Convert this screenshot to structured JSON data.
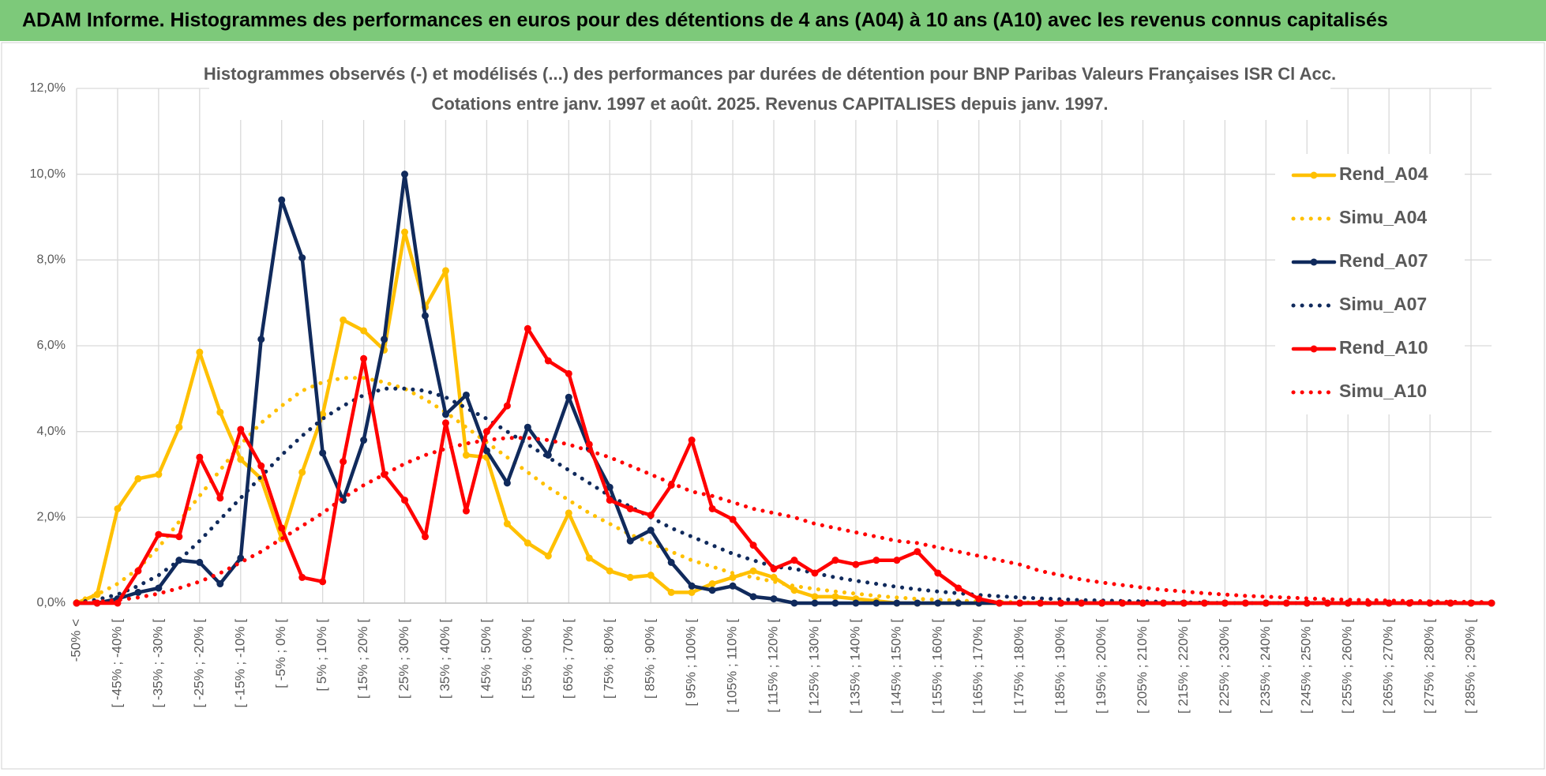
{
  "banner": {
    "title": "ADAM Informe. Histogrammes des performances en euros pour des détentions de 4 ans (A04) à 10 ans (A10) avec les revenus connus capitalisés"
  },
  "chart_data": {
    "type": "line",
    "title": "Histogrammes observés (-) et modélisés (...) des performances par durées de détention pour BNP Paribas Valeurs Françaises ISR Cl Acc.",
    "subtitle": "Cotations entre janv. 1997 et août. 2025. Revenus CAPITALISES depuis janv. 1997.",
    "categories": [
      "-50% <",
      null,
      "[ -45% ; -40% [",
      null,
      "[ -35% ; -30% [",
      null,
      "[ -25% ; -20% [",
      null,
      "[ -15% ; -10% [",
      null,
      "[ -5% ; 0% [",
      null,
      "[ 5% ; 10% [",
      null,
      "[ 15% ; 20% [",
      null,
      "[ 25% ; 30% [",
      null,
      "[ 35% ; 40% [",
      null,
      "[ 45% ; 50% [",
      null,
      "[ 55% ; 60% [",
      null,
      "[ 65% ; 70% [",
      null,
      "[ 75% ; 80% [",
      null,
      "[ 85% ; 90% [",
      null,
      "[ 95% ; 100% [",
      null,
      "[ 105% ; 110% [",
      null,
      "[ 115% ; 120% [",
      null,
      "[ 125% ; 130% [",
      null,
      "[ 135% ; 140% [",
      null,
      "[ 145% ; 150% [",
      null,
      "[ 155% ; 160% [",
      null,
      "[ 165% ; 170% [",
      null,
      "[ 175% ; 180% [",
      null,
      "[ 185% ; 190% [",
      null,
      "[ 195% ; 200% [",
      null,
      "[ 205% ; 210% [",
      null,
      "[ 215% ; 220% [",
      null,
      "[ 225% ; 230% [",
      null,
      "[ 235% ; 240% [",
      null,
      "[ 245% ; 250% [",
      null,
      "[ 255% ; 260% [",
      null,
      "[ 265% ; 270% [",
      null,
      "[ 275% ; 280% [",
      null,
      "[ 285% ; 290% [",
      null
    ],
    "series": [
      {
        "name": "Rend_A04",
        "color": "#ffc000",
        "line_style": "solid",
        "values": [
          0,
          0.2,
          2.2,
          2.9,
          3.0,
          4.1,
          5.85,
          4.45,
          3.35,
          2.9,
          1.5,
          3.05,
          4.4,
          6.6,
          6.35,
          5.9,
          8.65,
          6.9,
          7.75,
          3.45,
          3.4,
          1.85,
          1.4,
          1.1,
          2.1,
          1.05,
          0.75,
          0.6,
          0.65,
          0.25,
          0.25,
          0.45,
          0.6,
          0.75,
          0.6,
          0.3,
          0.15,
          0.15,
          0.1,
          0.05,
          0,
          0,
          0,
          0,
          0,
          0,
          0,
          0,
          0,
          0,
          0,
          0,
          0,
          0,
          0,
          0,
          0,
          0,
          0,
          0,
          0,
          0,
          0,
          0,
          0,
          0,
          0,
          0,
          0,
          0
        ]
      },
      {
        "name": "Simu_A04",
        "color": "#ffc000",
        "line_style": "dotted",
        "values": [
          0.05,
          0.2,
          0.45,
          0.8,
          1.3,
          1.9,
          2.5,
          3.1,
          3.7,
          4.2,
          4.6,
          4.95,
          5.15,
          5.25,
          5.25,
          5.15,
          5.0,
          4.75,
          4.45,
          4.1,
          3.75,
          3.4,
          3.05,
          2.7,
          2.4,
          2.1,
          1.85,
          1.6,
          1.4,
          1.2,
          1.0,
          0.85,
          0.7,
          0.6,
          0.5,
          0.4,
          0.33,
          0.27,
          0.22,
          0.17,
          0.13,
          0.1,
          0.08,
          0.06,
          0.04,
          0.03,
          0.02,
          0.01,
          0,
          0,
          0,
          0,
          0,
          0,
          0,
          0,
          0,
          0,
          0,
          0,
          0,
          0,
          0,
          0,
          0,
          0,
          0,
          0,
          0,
          0
        ]
      },
      {
        "name": "Rend_A07",
        "color": "#102a5c",
        "line_style": "solid",
        "values": [
          0,
          0,
          0.1,
          0.25,
          0.35,
          1.0,
          0.95,
          0.45,
          1.05,
          6.15,
          9.4,
          8.05,
          3.5,
          2.4,
          3.8,
          6.15,
          10.0,
          6.7,
          4.4,
          4.85,
          3.55,
          2.8,
          4.1,
          3.45,
          4.8,
          3.6,
          2.7,
          1.45,
          1.7,
          0.95,
          0.4,
          0.3,
          0.4,
          0.15,
          0.1,
          0,
          0,
          0,
          0,
          0,
          0,
          0,
          0,
          0,
          0,
          0,
          0,
          0,
          0,
          0,
          0,
          0,
          0,
          0,
          0,
          0,
          0,
          0,
          0,
          0,
          0,
          0,
          0,
          0,
          0,
          0,
          0,
          0,
          0,
          0
        ]
      },
      {
        "name": "Simu_A07",
        "color": "#102a5c",
        "line_style": "dotted",
        "values": [
          0.02,
          0.08,
          0.2,
          0.4,
          0.65,
          1.0,
          1.45,
          1.95,
          2.45,
          2.95,
          3.45,
          3.9,
          4.3,
          4.6,
          4.85,
          5.0,
          5.0,
          4.95,
          4.8,
          4.55,
          4.3,
          4.0,
          3.7,
          3.4,
          3.1,
          2.8,
          2.5,
          2.25,
          2.0,
          1.75,
          1.55,
          1.35,
          1.15,
          1.0,
          0.85,
          0.8,
          0.7,
          0.6,
          0.52,
          0.45,
          0.38,
          0.32,
          0.27,
          0.23,
          0.19,
          0.16,
          0.13,
          0.11,
          0.09,
          0.07,
          0.06,
          0.05,
          0.04,
          0.03,
          0.02,
          0.01,
          0,
          0,
          0,
          0,
          0,
          0,
          0,
          0,
          0,
          0,
          0,
          0,
          0,
          0
        ]
      },
      {
        "name": "Rend_A10",
        "color": "#ff0000",
        "line_style": "solid",
        "values": [
          0,
          0,
          0,
          0.75,
          1.6,
          1.55,
          3.4,
          2.45,
          4.05,
          3.2,
          1.75,
          0.6,
          0.5,
          3.3,
          5.7,
          3.0,
          2.4,
          1.55,
          4.2,
          2.15,
          4.0,
          4.6,
          6.4,
          5.65,
          5.35,
          3.7,
          2.4,
          2.2,
          2.05,
          2.75,
          3.8,
          2.2,
          1.95,
          1.35,
          0.8,
          1.0,
          0.7,
          1.0,
          0.9,
          1.0,
          1.0,
          1.2,
          0.7,
          0.35,
          0.1,
          0,
          0,
          0,
          0,
          0,
          0,
          0,
          0,
          0,
          0,
          0,
          0,
          0,
          0,
          0,
          0,
          0,
          0,
          0,
          0,
          0,
          0,
          0,
          0,
          0
        ]
      },
      {
        "name": "Simu_A10",
        "color": "#ff0000",
        "line_style": "dotted",
        "values": [
          0.01,
          0.03,
          0.07,
          0.13,
          0.22,
          0.35,
          0.5,
          0.7,
          0.95,
          1.2,
          1.5,
          1.8,
          2.1,
          2.45,
          2.75,
          3.0,
          3.25,
          3.45,
          3.6,
          3.72,
          3.8,
          3.85,
          3.85,
          3.8,
          3.7,
          3.55,
          3.4,
          3.2,
          3.0,
          2.8,
          2.6,
          2.5,
          2.35,
          2.2,
          2.1,
          2.0,
          1.85,
          1.75,
          1.65,
          1.55,
          1.45,
          1.4,
          1.3,
          1.2,
          1.1,
          1.0,
          0.9,
          0.75,
          0.65,
          0.55,
          0.48,
          0.42,
          0.36,
          0.31,
          0.27,
          0.23,
          0.2,
          0.17,
          0.15,
          0.13,
          0.11,
          0.09,
          0.08,
          0.07,
          0.06,
          0.05,
          0.04,
          0.03,
          0.03,
          0.02
        ]
      }
    ],
    "ylim": [
      0,
      12
    ],
    "yticks": [
      {
        "value": 0,
        "label": "0,0%"
      },
      {
        "value": 2,
        "label": "2,0%"
      },
      {
        "value": 4,
        "label": "4,0%"
      },
      {
        "value": 6,
        "label": "6,0%"
      },
      {
        "value": 8,
        "label": "8,0%"
      },
      {
        "value": 10,
        "label": "10,0%"
      },
      {
        "value": 12,
        "label": "12,0%"
      }
    ],
    "grid": true,
    "legend": "right"
  }
}
